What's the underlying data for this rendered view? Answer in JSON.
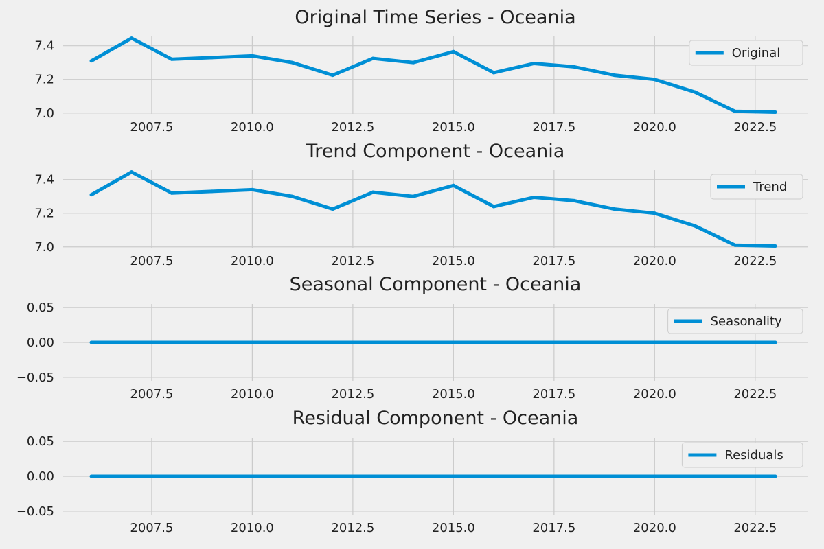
{
  "chart_data": [
    {
      "type": "line",
      "title": "Original Time Series - Oceania",
      "xlabel": "",
      "ylabel": "",
      "xlim": [
        2005.3,
        2023.8
      ],
      "ylim": [
        6.995,
        7.46
      ],
      "x_ticks": [
        2007.5,
        2010.0,
        2012.5,
        2015.0,
        2017.5,
        2020.0,
        2022.5
      ],
      "x_tick_labels": [
        "2007.5",
        "2010.0",
        "2012.5",
        "2015.0",
        "2017.5",
        "2020.0",
        "2022.5"
      ],
      "y_ticks": [
        7.0,
        7.2,
        7.4
      ],
      "y_tick_labels": [
        "7.0",
        "7.2",
        "7.4"
      ],
      "grid": true,
      "legend_position": "upper right",
      "color": "#008fd5",
      "series": [
        {
          "name": "Original",
          "x": [
            2006,
            2007,
            2008,
            2009,
            2010,
            2011,
            2012,
            2013,
            2014,
            2015,
            2016,
            2017,
            2018,
            2019,
            2020,
            2021,
            2022,
            2023
          ],
          "values": [
            7.31,
            7.445,
            7.32,
            7.33,
            7.34,
            7.3,
            7.225,
            7.325,
            7.3,
            7.365,
            7.24,
            7.295,
            7.275,
            7.225,
            7.2,
            7.125,
            7.01,
            7.005
          ]
        }
      ]
    },
    {
      "type": "line",
      "title": "Trend Component - Oceania",
      "xlabel": "",
      "ylabel": "",
      "xlim": [
        2005.3,
        2023.8
      ],
      "ylim": [
        6.995,
        7.46
      ],
      "x_ticks": [
        2007.5,
        2010.0,
        2012.5,
        2015.0,
        2017.5,
        2020.0,
        2022.5
      ],
      "x_tick_labels": [
        "2007.5",
        "2010.0",
        "2012.5",
        "2015.0",
        "2017.5",
        "2020.0",
        "2022.5"
      ],
      "y_ticks": [
        7.0,
        7.2,
        7.4
      ],
      "y_tick_labels": [
        "7.0",
        "7.2",
        "7.4"
      ],
      "grid": true,
      "legend_position": "upper right",
      "color": "#008fd5",
      "series": [
        {
          "name": "Trend",
          "x": [
            2006,
            2007,
            2008,
            2009,
            2010,
            2011,
            2012,
            2013,
            2014,
            2015,
            2016,
            2017,
            2018,
            2019,
            2020,
            2021,
            2022,
            2023
          ],
          "values": [
            7.31,
            7.445,
            7.32,
            7.33,
            7.34,
            7.3,
            7.225,
            7.325,
            7.3,
            7.365,
            7.24,
            7.295,
            7.275,
            7.225,
            7.2,
            7.125,
            7.01,
            7.005
          ]
        }
      ]
    },
    {
      "type": "line",
      "title": "Seasonal Component - Oceania",
      "xlabel": "",
      "ylabel": "",
      "xlim": [
        2005.3,
        2023.8
      ],
      "ylim": [
        -0.055,
        0.055
      ],
      "x_ticks": [
        2007.5,
        2010.0,
        2012.5,
        2015.0,
        2017.5,
        2020.0,
        2022.5
      ],
      "x_tick_labels": [
        "2007.5",
        "2010.0",
        "2012.5",
        "2015.0",
        "2017.5",
        "2020.0",
        "2022.5"
      ],
      "y_ticks": [
        0.05,
        0.0,
        -0.05
      ],
      "y_tick_labels": [
        "0.05",
        "0.00",
        "−0.05"
      ],
      "grid": true,
      "legend_position": "upper right",
      "color": "#008fd5",
      "series": [
        {
          "name": "Seasonality",
          "x": [
            2006,
            2007,
            2008,
            2009,
            2010,
            2011,
            2012,
            2013,
            2014,
            2015,
            2016,
            2017,
            2018,
            2019,
            2020,
            2021,
            2022,
            2023
          ],
          "values": [
            0,
            0,
            0,
            0,
            0,
            0,
            0,
            0,
            0,
            0,
            0,
            0,
            0,
            0,
            0,
            0,
            0,
            0
          ]
        }
      ]
    },
    {
      "type": "line",
      "title": "Residual Component - Oceania",
      "xlabel": "",
      "ylabel": "",
      "xlim": [
        2005.3,
        2023.8
      ],
      "ylim": [
        -0.055,
        0.055
      ],
      "x_ticks": [
        2007.5,
        2010.0,
        2012.5,
        2015.0,
        2017.5,
        2020.0,
        2022.5
      ],
      "x_tick_labels": [
        "2007.5",
        "2010.0",
        "2012.5",
        "2015.0",
        "2017.5",
        "2020.0",
        "2022.5"
      ],
      "y_ticks": [
        0.05,
        0.0,
        -0.05
      ],
      "y_tick_labels": [
        "0.05",
        "0.00",
        "−0.05"
      ],
      "grid": true,
      "legend_position": "upper right",
      "color": "#008fd5",
      "series": [
        {
          "name": "Residuals",
          "x": [
            2006,
            2007,
            2008,
            2009,
            2010,
            2011,
            2012,
            2013,
            2014,
            2015,
            2016,
            2017,
            2018,
            2019,
            2020,
            2021,
            2022,
            2023
          ],
          "values": [
            0,
            0,
            0,
            0,
            0,
            0,
            0,
            0,
            0,
            0,
            0,
            0,
            0,
            0,
            0,
            0,
            0,
            0
          ]
        }
      ]
    }
  ]
}
